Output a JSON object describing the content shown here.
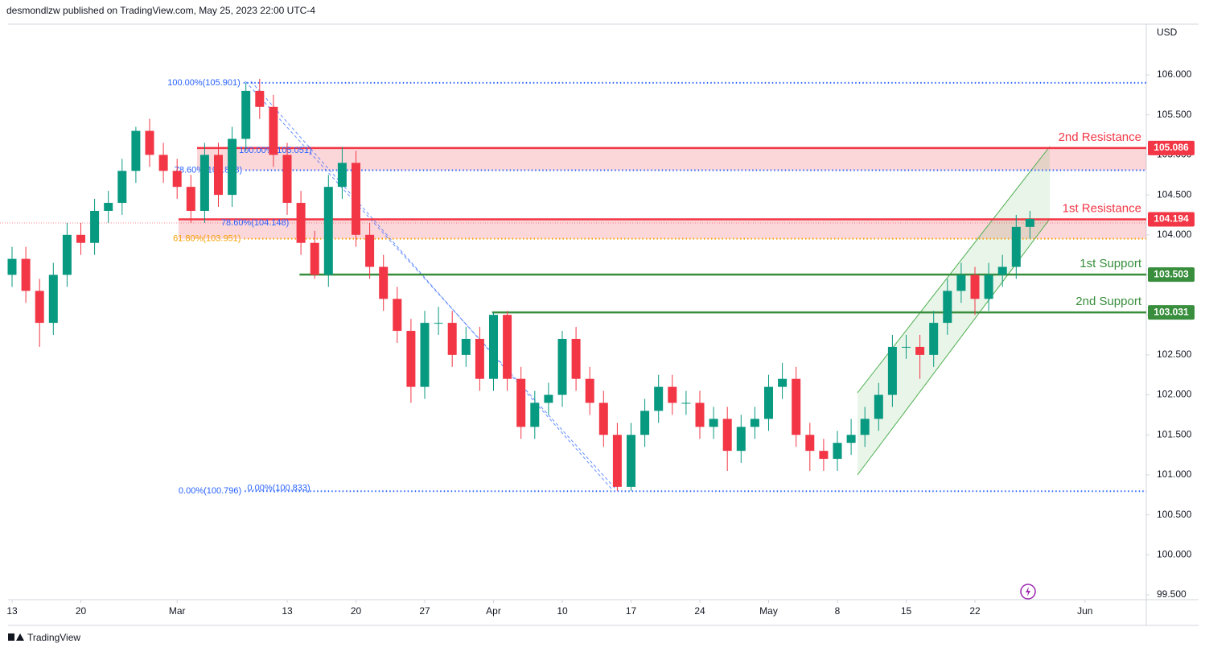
{
  "header": {
    "byline": "desmondlzw published on TradingView.com, May 25, 2023 22:00 UTC-4",
    "brand": "TradingView"
  },
  "chart_data": {
    "type": "candlestick",
    "currency": "USD",
    "up_color": "#089981",
    "down_color": "#f23645",
    "x": [
      0,
      1,
      2,
      3,
      4,
      5,
      6,
      7,
      8,
      9,
      10,
      11,
      12,
      13,
      14,
      15,
      16,
      17,
      18,
      19,
      20,
      21,
      22,
      23,
      24,
      25,
      26,
      27,
      28,
      29,
      30,
      31,
      32,
      33,
      34,
      35,
      36,
      37,
      38,
      39,
      40,
      41,
      42,
      43,
      44,
      45,
      46,
      47,
      48,
      49,
      50,
      51,
      52,
      53,
      54,
      55,
      56,
      57,
      58,
      59,
      60,
      61,
      62,
      63,
      64,
      65,
      66,
      67,
      68,
      69,
      70,
      71,
      72,
      73,
      74
    ],
    "open": [
      103.5,
      103.7,
      103.3,
      102.9,
      103.5,
      104.0,
      103.9,
      104.3,
      104.4,
      104.8,
      105.3,
      105.0,
      104.8,
      104.6,
      104.3,
      105.0,
      104.5,
      105.2,
      105.8,
      105.6,
      105.0,
      104.4,
      103.9,
      103.5,
      104.6,
      104.9,
      104.0,
      103.6,
      103.2,
      102.8,
      102.1,
      102.9,
      102.9,
      102.5,
      102.7,
      102.2,
      103.0,
      102.2,
      101.6,
      101.9,
      102.0,
      102.7,
      102.2,
      101.9,
      101.5,
      100.85,
      101.5,
      101.8,
      102.1,
      101.9,
      101.9,
      101.6,
      101.7,
      101.3,
      101.6,
      101.7,
      102.1,
      102.2,
      101.5,
      101.3,
      101.2,
      101.4,
      101.5,
      101.7,
      102.0,
      102.6,
      102.6,
      102.5,
      102.9,
      103.3,
      103.5,
      103.2,
      103.5,
      103.6,
      104.1
    ],
    "high": [
      103.85,
      103.85,
      103.45,
      103.65,
      104.15,
      104.15,
      104.45,
      104.55,
      104.95,
      105.35,
      105.45,
      105.15,
      104.95,
      104.75,
      105.15,
      105.15,
      105.35,
      105.9,
      105.95,
      105.75,
      105.15,
      104.55,
      104.05,
      104.75,
      105.1,
      105.05,
      104.15,
      103.75,
      103.35,
      102.95,
      103.05,
      103.1,
      103.05,
      102.85,
      102.85,
      103.03,
      103.05,
      102.35,
      102.05,
      102.15,
      102.8,
      102.85,
      102.35,
      102.05,
      101.65,
      101.65,
      101.95,
      102.25,
      102.25,
      102.05,
      102.05,
      101.85,
      101.85,
      101.75,
      101.85,
      102.25,
      102.4,
      102.35,
      101.65,
      101.45,
      101.55,
      101.7,
      101.85,
      102.15,
      102.75,
      102.75,
      102.75,
      103.05,
      103.45,
      103.65,
      103.6,
      103.65,
      103.75,
      104.25,
      104.3
    ],
    "low": [
      103.35,
      103.15,
      102.6,
      102.75,
      103.35,
      103.75,
      103.75,
      104.15,
      104.25,
      104.65,
      104.85,
      104.65,
      104.45,
      104.15,
      104.15,
      104.35,
      104.35,
      105.05,
      105.45,
      104.85,
      104.25,
      103.75,
      103.45,
      103.35,
      104.45,
      103.85,
      103.45,
      103.05,
      102.65,
      101.9,
      101.95,
      102.75,
      102.35,
      102.35,
      102.05,
      102.05,
      102.05,
      101.45,
      101.45,
      101.75,
      101.85,
      102.05,
      101.75,
      101.35,
      100.8,
      100.8,
      101.35,
      101.65,
      101.75,
      101.75,
      101.45,
      101.45,
      101.05,
      101.15,
      101.45,
      101.55,
      101.95,
      101.35,
      101.05,
      101.05,
      101.05,
      101.25,
      101.35,
      101.55,
      101.85,
      102.45,
      102.2,
      102.35,
      102.75,
      103.15,
      103.0,
      103.05,
      103.35,
      103.45,
      103.95
    ],
    "close": [
      103.7,
      103.3,
      102.9,
      103.5,
      104.0,
      103.9,
      104.3,
      104.4,
      104.8,
      105.3,
      105.0,
      104.8,
      104.6,
      104.3,
      105.0,
      104.5,
      105.2,
      105.8,
      105.6,
      105.0,
      104.4,
      103.9,
      103.5,
      104.6,
      104.9,
      104.0,
      103.6,
      103.2,
      102.8,
      102.1,
      102.9,
      102.9,
      102.5,
      102.7,
      102.2,
      103.0,
      102.2,
      101.6,
      101.9,
      102.0,
      102.7,
      102.2,
      101.9,
      101.5,
      100.85,
      101.5,
      101.8,
      102.1,
      101.9,
      101.9,
      101.6,
      101.7,
      101.3,
      101.6,
      101.7,
      102.1,
      102.2,
      101.5,
      101.3,
      101.2,
      101.4,
      101.5,
      101.7,
      102.0,
      102.6,
      102.6,
      102.5,
      102.9,
      103.3,
      103.5,
      103.2,
      103.5,
      103.6,
      104.1,
      104.2
    ],
    "xlim": [
      -0.877,
      82.456
    ],
    "xticks": [
      {
        "value": 0,
        "label": "13"
      },
      {
        "value": 5,
        "label": "20"
      },
      {
        "value": 12,
        "label": "Mar"
      },
      {
        "value": 20,
        "label": "13"
      },
      {
        "value": 25,
        "label": "20"
      },
      {
        "value": 30,
        "label": "27"
      },
      {
        "value": 35,
        "label": "Apr"
      },
      {
        "value": 40,
        "label": "10"
      },
      {
        "value": 45,
        "label": "17"
      },
      {
        "value": 50,
        "label": "24"
      },
      {
        "value": 55,
        "label": "May"
      },
      {
        "value": 60,
        "label": "8"
      },
      {
        "value": 65,
        "label": "15"
      },
      {
        "value": 70,
        "label": "22"
      },
      {
        "value": 78,
        "label": "Jun"
      }
    ],
    "ylim": [
      99.44,
      106.634
    ],
    "yticks": [
      {
        "value": 99.5,
        "label": "99.500"
      },
      {
        "value": 100,
        "label": "100.000"
      },
      {
        "value": 100.5,
        "label": "100.500"
      },
      {
        "value": 101,
        "label": "101.000"
      },
      {
        "value": 101.5,
        "label": "101.500"
      },
      {
        "value": 102,
        "label": "102.000"
      },
      {
        "value": 102.5,
        "label": "102.500"
      },
      {
        "value": 103,
        "label": "103.000"
      },
      {
        "value": 103.5,
        "label": "103.500"
      },
      {
        "value": 104,
        "label": "104.000"
      },
      {
        "value": 104.5,
        "label": "104.500"
      },
      {
        "value": 105,
        "label": "105.000"
      },
      {
        "value": 105.5,
        "label": "105.500"
      },
      {
        "value": 106,
        "label": "106.000"
      }
    ],
    "levels": [
      {
        "name": "2nd Resistance",
        "value": 105.086,
        "zone_low": 104.808,
        "from_x": 13.45,
        "color": "#f23645"
      },
      {
        "name": "1st Resistance",
        "value": 104.194,
        "zone_low": 103.951,
        "from_x": 12.1,
        "color": "#f23645"
      },
      {
        "name": "1st Support",
        "value": 103.503,
        "from_x": 20.9,
        "color": "#388e3c"
      },
      {
        "name": "2nd Support",
        "value": 103.031,
        "from_x": 34.9,
        "color": "#388e3c"
      }
    ],
    "fib_levels": [
      {
        "label": "100.00%(105.901)",
        "value": 105.901,
        "x": 11.3,
        "color": "#2962ff",
        "dotted": true
      },
      {
        "label": "100.00%(105.051)",
        "value": 105.051,
        "x": 16.5,
        "color": "#2962ff",
        "dotted": false
      },
      {
        "label": "78.60%(104.808)",
        "value": 104.808,
        "x": 11.8,
        "color": "#2962ff",
        "dotted": true
      },
      {
        "label": "78.60%(104.148)",
        "value": 104.148,
        "x": 15.2,
        "color": "#2962ff",
        "dotted": false
      },
      {
        "label": "61.80%(103.951)",
        "value": 103.951,
        "x": 11.7,
        "color": "#f59f00",
        "dotted": true
      },
      {
        "label": "0.00%(100.796)",
        "value": 100.796,
        "x": 12.1,
        "color": "#2962ff",
        "dotted": true
      },
      {
        "label": "0.00%(100.833)",
        "value": 100.833,
        "x": 17.1,
        "color": "#2962ff",
        "dotted": false
      }
    ]
  }
}
